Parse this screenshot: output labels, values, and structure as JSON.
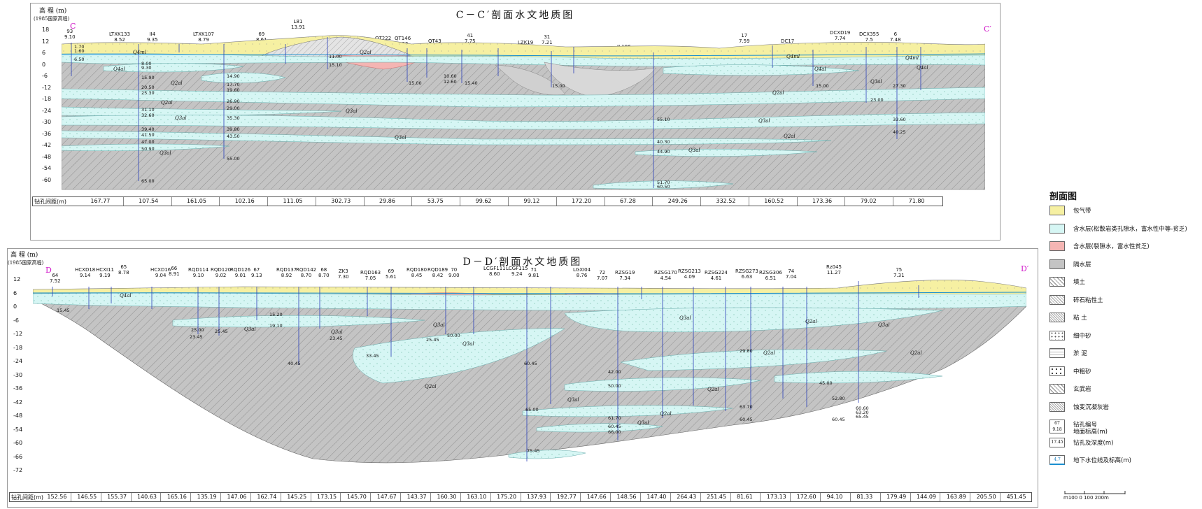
{
  "section_c": {
    "title": "C－C′剖面水文地质图",
    "elev_label": "高 程 (m)",
    "datum_label": "(1985国家高程)",
    "start_mark": "C",
    "end_mark": "C′",
    "elev_ticks": [
      "18",
      "12",
      "6",
      "0",
      "-6",
      "-12",
      "-18",
      "-24",
      "-30",
      "-36",
      "-42",
      "-48",
      "-54",
      "-60"
    ],
    "spacing_label": "钻孔间距(m)",
    "spacings": [
      "167.77",
      "107.54",
      "161.05",
      "102.16",
      "111.05",
      "302.73",
      "29.86",
      "53.75",
      "99.62",
      "99.12",
      "172.20",
      "67.28",
      "249.26",
      "332.52",
      "160.52",
      "173.36",
      "79.02",
      "71.80"
    ],
    "boreholes": [
      {
        "id": "93",
        "elev": "9.10"
      },
      {
        "id": "LTXK133",
        "elev": "8.52"
      },
      {
        "id": "II4",
        "elev": "9.35"
      },
      {
        "id": "LTXK107",
        "elev": "8.79"
      },
      {
        "id": "69",
        "elev": "8.61"
      },
      {
        "id": "L81",
        "elev": "13.91"
      },
      {
        "id": "QT222",
        "elev": "6.96"
      },
      {
        "id": "QT146",
        "elev": "6.90"
      },
      {
        "id": "QT43",
        "elev": "5.96"
      },
      {
        "id": "41",
        "elev": "7.75"
      },
      {
        "id": "LZK19",
        "elev": "5.91"
      },
      {
        "id": "31",
        "elev": "7.21"
      },
      {
        "id": "II 196",
        "elev": "2.45"
      },
      {
        "id": "17",
        "elev": "7.59"
      },
      {
        "id": "DC17",
        "elev": "4.40"
      },
      {
        "id": "DCXD19",
        "elev": "7.74"
      },
      {
        "id": "DCX355",
        "elev": "7.5"
      },
      {
        "id": "6",
        "elev": "7.48"
      }
    ],
    "depth_labels": [
      "1.70",
      "1.60",
      "6.50",
      "8.00",
      "9.30",
      "15.90",
      "20.50",
      "25.30",
      "31.10",
      "32.60",
      "39.40",
      "41.50",
      "47.00",
      "50.90",
      "65.00",
      "14.90",
      "17.70",
      "19.60",
      "26.90",
      "29.00",
      "35.30",
      "39.80",
      "43.50",
      "55.00",
      "11.00",
      "15.10",
      "15.00",
      "10.60",
      "12.60",
      "15.40",
      "15.00",
      "23.00",
      "15.00",
      "27.30",
      "33.60",
      "40.25",
      "55.10",
      "40.30",
      "44.90",
      "51.70",
      "60.50"
    ],
    "soil_labels": [
      "Q4ml",
      "Q4al",
      "Q3al",
      "Q3al",
      "Q2al",
      "Q2al",
      "Q3al",
      "Q3al",
      "Q2al",
      "Q4ml",
      "Q4al",
      "Q3al",
      "Q2al",
      "Q3al",
      "Q4ml",
      "Q4al",
      "Q2al",
      "Q3al"
    ]
  },
  "section_d": {
    "title": "D－D′剖面水文地质图",
    "elev_label": "高 程 (m)",
    "datum_label": "(1985国家高程)",
    "start_mark": "D",
    "end_mark": "D′",
    "elev_ticks": [
      "12",
      "6",
      "0",
      "-6",
      "-12",
      "-18",
      "-24",
      "-30",
      "-36",
      "-42",
      "-48",
      "-54",
      "-60",
      "-66",
      "-72"
    ],
    "spacing_label": "钻孔间距(m)",
    "spacings": [
      "152.56",
      "146.55",
      "155.37",
      "140.63",
      "165.16",
      "135.19",
      "147.06",
      "162.74",
      "145.25",
      "173.15",
      "145.70",
      "147.67",
      "143.37",
      "160.30",
      "163.10",
      "175.20",
      "137.93",
      "192.77",
      "147.66",
      "148.56",
      "147.40",
      "264.43",
      "251.45",
      "81.61",
      "173.13",
      "172.60",
      "94.10",
      "81.33",
      "179.49",
      "144.09",
      "163.89",
      "205.50",
      "451.45"
    ],
    "boreholes": [
      {
        "id": "64",
        "elev": "7.52"
      },
      {
        "id": "HCXD18",
        "elev": "9.14"
      },
      {
        "id": "HCXI11",
        "elev": "9.19"
      },
      {
        "id": "65",
        "elev": "8.78"
      },
      {
        "id": "HCXD16",
        "elev": "9.04"
      },
      {
        "id": "66",
        "elev": "8.91"
      },
      {
        "id": "RQD114",
        "elev": "9.10"
      },
      {
        "id": "RQD120",
        "elev": "9.02"
      },
      {
        "id": "RQD126",
        "elev": "9.01"
      },
      {
        "id": "67",
        "elev": "9.13"
      },
      {
        "id": "RQD137",
        "elev": "8.92"
      },
      {
        "id": "RQD142",
        "elev": "8.70"
      },
      {
        "id": "68",
        "elev": "8.70"
      },
      {
        "id": "ZK3",
        "elev": "7.30"
      },
      {
        "id": "RQD163",
        "elev": "7.05"
      },
      {
        "id": "69",
        "elev": "5.61"
      },
      {
        "id": "RQD180",
        "elev": "8.45"
      },
      {
        "id": "RQD189",
        "elev": "8.42"
      },
      {
        "id": "70",
        "elev": "9.00"
      },
      {
        "id": "LCGF111",
        "elev": "8.60"
      },
      {
        "id": "LCGF115",
        "elev": "9.24"
      },
      {
        "id": "71",
        "elev": "9.81"
      },
      {
        "id": "LGXI04",
        "elev": "8.76"
      },
      {
        "id": "72",
        "elev": "7.07"
      },
      {
        "id": "RZSG19",
        "elev": "7.34"
      },
      {
        "id": "RZSG170",
        "elev": "4.54"
      },
      {
        "id": "RZSG213",
        "elev": "4.09"
      },
      {
        "id": "RZSG224",
        "elev": "4.61"
      },
      {
        "id": "RZSG273",
        "elev": "6.63"
      },
      {
        "id": "RZSG306",
        "elev": "6.51"
      },
      {
        "id": "74",
        "elev": "7.04"
      },
      {
        "id": "Rz045",
        "elev": "11.27"
      },
      {
        "id": "75",
        "elev": "7.31"
      }
    ],
    "depth_labels": [
      "15.45",
      "23.45",
      "25.00",
      "25.45",
      "15.20",
      "19.10",
      "40.45",
      "23.45",
      "25.45",
      "33.45",
      "50.00",
      "60.45",
      "65.00",
      "75.45",
      "42.00",
      "50.00",
      "61.70",
      "60.45",
      "66.00",
      "29.80",
      "63.70",
      "60.45",
      "52.80",
      "60.45",
      "45.00",
      "60.60",
      "63.20",
      "65.45"
    ],
    "soil_labels": [
      "Q4al",
      "Q3al",
      "Q3al",
      "Q3al",
      "Q3al",
      "Q2al",
      "Q2al",
      "Q2al",
      "Q3al",
      "Q2al",
      "Q3al",
      "Q2al",
      "Q3al",
      "Q2al",
      "Q3al"
    ]
  },
  "legend": {
    "title": "剖面图",
    "items": [
      {
        "label": "包气带",
        "color": "#f6f0a2",
        "pattern": "plain"
      },
      {
        "label": "含水层(松散岩类孔隙水，富水性中等-贫乏)",
        "color": "#d6f6f4",
        "pattern": "plain"
      },
      {
        "label": "含水层(裂隙水，富水性贫乏)",
        "color": "#f4b5b3",
        "pattern": "plain"
      },
      {
        "label": "隔水层",
        "color": "#c4c4c4",
        "pattern": "plain"
      },
      {
        "label": "填土",
        "color": "#ffffff",
        "pattern": "hatch"
      },
      {
        "label": "碎石粘性土",
        "color": "#ffffff",
        "pattern": "hatch2"
      },
      {
        "label": "粘 土",
        "color": "#ffffff",
        "pattern": "dense"
      },
      {
        "label": "细中砂",
        "color": "#ffffff",
        "pattern": "dot"
      },
      {
        "label": "淤 泥",
        "color": "#ffffff",
        "pattern": "dash"
      },
      {
        "label": "中粗砂",
        "color": "#ffffff",
        "pattern": "xdot"
      },
      {
        "label": "玄武岩",
        "color": "#ffffff",
        "pattern": "hatch"
      },
      {
        "label": "蚀变沉凝灰岩",
        "color": "#ffffff",
        "pattern": "dense"
      },
      {
        "label": "钻孔编号",
        "sub": "地面标高(m)",
        "color": "#ffffff",
        "pattern": "borehole",
        "sym_id": "67",
        "sym_elev": "9.18"
      },
      {
        "label": "钻孔及深度(m)",
        "color": "#ffffff",
        "pattern": "depth",
        "sym_depth": "17.45"
      },
      {
        "label": "地下水位线及标高(m)",
        "color": "#ffffff",
        "pattern": "water",
        "sym_wl": "4.7"
      }
    ]
  },
  "scale": {
    "label": "m100  0   100   200m"
  },
  "colors": {
    "vadose": "#f6f0a2",
    "aquifer": "#d6f6f4",
    "fracture": "#f4b5b3",
    "aquitard": "#c4c4c4",
    "water_line": "#1a8fd0",
    "borehole": "#2a3fb8",
    "mark": "#d014c8"
  }
}
